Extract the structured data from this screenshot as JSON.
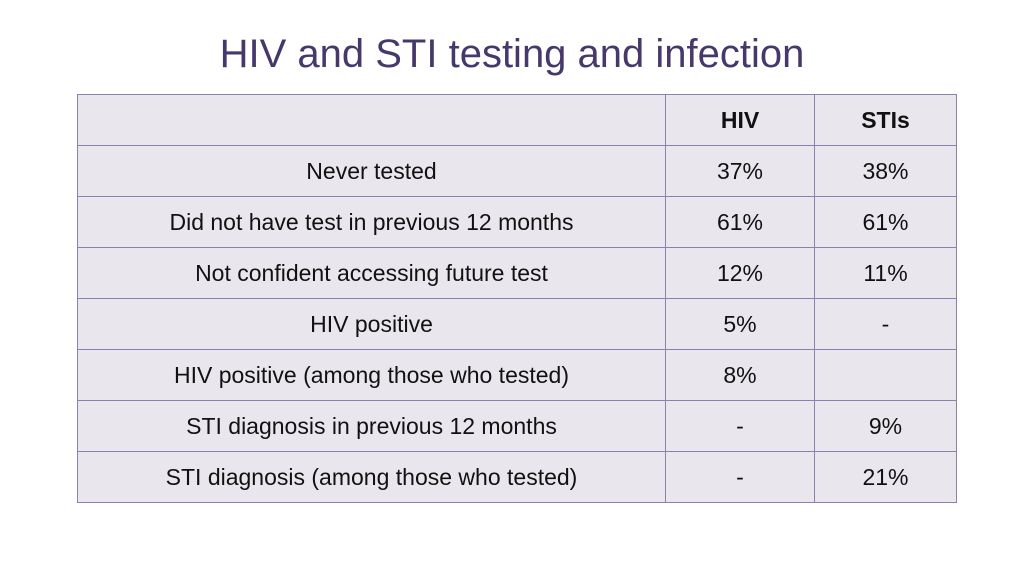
{
  "title": "HIV and STI testing and infection",
  "table": {
    "headers": [
      "",
      "HIV",
      "STIs"
    ],
    "rows": [
      {
        "label": "Never tested",
        "hiv": "37%",
        "sti": "38%"
      },
      {
        "label": "Did not have test in previous 12 months",
        "hiv": "61%",
        "sti": "61%"
      },
      {
        "label": "Not confident accessing future test",
        "hiv": "12%",
        "sti": "11%"
      },
      {
        "label": "HIV positive",
        "hiv": "5%",
        "sti": "-"
      },
      {
        "label": "HIV positive (among those who tested)",
        "hiv": "8%",
        "sti": ""
      },
      {
        "label": "STI diagnosis in previous 12 months",
        "hiv": "-",
        "sti": "9%"
      },
      {
        "label": "STI diagnosis (among those who tested)",
        "hiv": "-",
        "sti": "21%"
      }
    ]
  }
}
